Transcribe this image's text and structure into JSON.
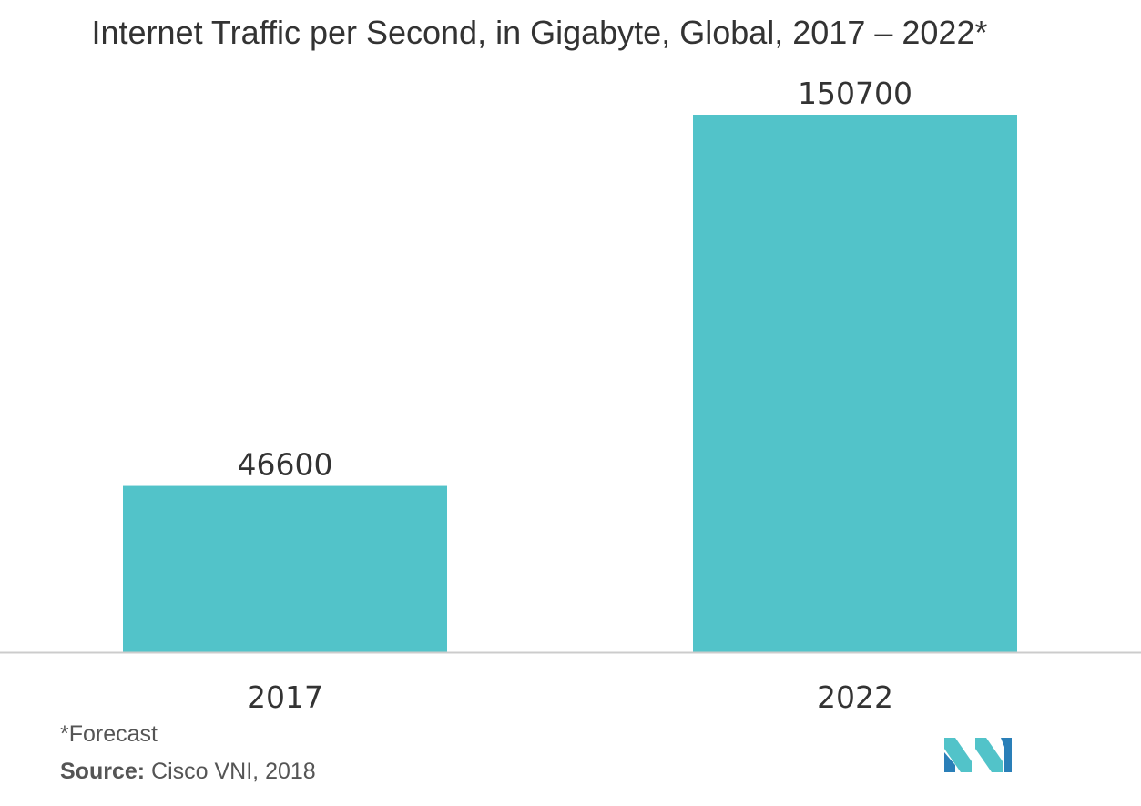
{
  "chart_data": {
    "type": "bar",
    "title": "Internet Traffic per Second, in Gigabyte, Global, 2017 – 2022*",
    "categories": [
      "2017",
      "2022"
    ],
    "values": [
      46600,
      150700
    ],
    "value_labels": [
      "46600",
      "150700"
    ],
    "xlabel": "",
    "ylabel": "",
    "ylim": [
      0,
      150700
    ],
    "grid": false,
    "legend": "none",
    "bar_color": "#52c3c9",
    "axis_color": "#cccccc"
  },
  "footnote": "*Forecast",
  "source": {
    "label": "Source:",
    "text": " Cisco VNI, 2018"
  },
  "logo": {
    "icon": "mordor-intelligence-logo-icon",
    "colors": [
      "#52c3c9",
      "#2a7fb8"
    ]
  }
}
